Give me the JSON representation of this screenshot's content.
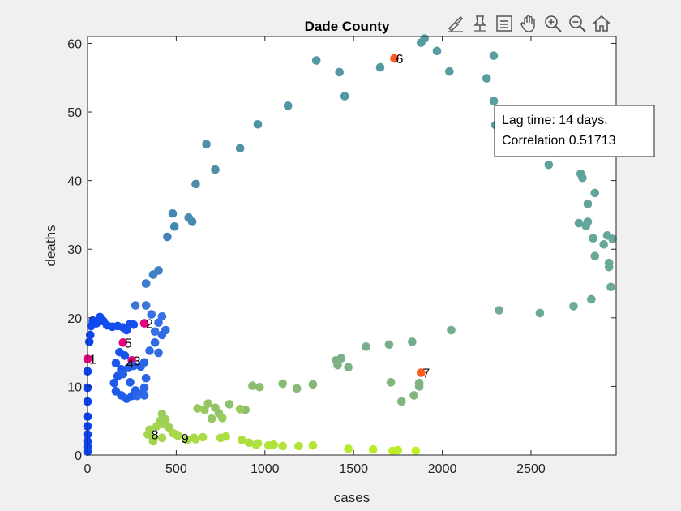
{
  "toolbar": {
    "icons": [
      "brush-icon",
      "data-tips-icon",
      "legend-icon",
      "pan-icon",
      "zoom-in-icon",
      "zoom-out-icon",
      "home-icon"
    ]
  },
  "colors": {
    "background": "#f0f0f0",
    "axes_background": "#ffffff",
    "highlight_colors": [
      "#e6007e",
      "#ff5a1f"
    ]
  },
  "chart_data": {
    "type": "scatter",
    "title": "Dade County",
    "xlabel": "cases",
    "ylabel": "deaths",
    "xlim": [
      0,
      2980
    ],
    "ylim": [
      0,
      61
    ],
    "xticks": [
      0,
      500,
      1000,
      1500,
      2000,
      2500
    ],
    "yticks": [
      0,
      10,
      20,
      30,
      40,
      50,
      60
    ],
    "grid": false,
    "annotation": {
      "lines": [
        "Lag time: 14 days.",
        "Correlation 0.51713"
      ],
      "placement": "top-right"
    },
    "points": [
      {
        "x": 0,
        "y": 0.5,
        "c": "#0a43f2"
      },
      {
        "x": 0,
        "y": 1.2,
        "c": "#0a43f2"
      },
      {
        "x": 0,
        "y": 2.0,
        "c": "#0a43f2"
      },
      {
        "x": 0,
        "y": 3.0,
        "c": "#0a43f2"
      },
      {
        "x": 0,
        "y": 4.2,
        "c": "#0a43f2"
      },
      {
        "x": 0,
        "y": 5.6,
        "c": "#0a43f2"
      },
      {
        "x": 0,
        "y": 7.8,
        "c": "#0a43f2"
      },
      {
        "x": 0,
        "y": 9.8,
        "c": "#0a43f2"
      },
      {
        "x": 0,
        "y": 12.2,
        "c": "#0a43f2"
      },
      {
        "x": 0,
        "y": 14.0,
        "c": "#e6007e"
      },
      {
        "x": 10,
        "y": 16.5,
        "c": "#0c46f1"
      },
      {
        "x": 15,
        "y": 17.5,
        "c": "#0c46f1"
      },
      {
        "x": 20,
        "y": 18.8,
        "c": "#0e48f0"
      },
      {
        "x": 30,
        "y": 19.6,
        "c": "#0e48f0"
      },
      {
        "x": 50,
        "y": 19.2,
        "c": "#0e48f0"
      },
      {
        "x": 70,
        "y": 20.1,
        "c": "#104af0"
      },
      {
        "x": 90,
        "y": 19.5,
        "c": "#104af0"
      },
      {
        "x": 110,
        "y": 18.9,
        "c": "#124cef"
      },
      {
        "x": 140,
        "y": 18.7,
        "c": "#124cef"
      },
      {
        "x": 170,
        "y": 18.8,
        "c": "#144eee"
      },
      {
        "x": 200,
        "y": 18.6,
        "c": "#144eee"
      },
      {
        "x": 220,
        "y": 18.2,
        "c": "#1650ee"
      },
      {
        "x": 240,
        "y": 19.1,
        "c": "#1650ee"
      },
      {
        "x": 260,
        "y": 19.0,
        "c": "#1852ed"
      },
      {
        "x": 320,
        "y": 19.2,
        "c": "#e6007e"
      },
      {
        "x": 200,
        "y": 16.4,
        "c": "#e6007e"
      },
      {
        "x": 250,
        "y": 13.8,
        "c": "#e6007e"
      },
      {
        "x": 210,
        "y": 14.5,
        "c": "#1a54ec"
      },
      {
        "x": 180,
        "y": 15.0,
        "c": "#1a54ec"
      },
      {
        "x": 160,
        "y": 13.4,
        "c": "#1c56ec"
      },
      {
        "x": 190,
        "y": 12.5,
        "c": "#1c56ec"
      },
      {
        "x": 170,
        "y": 11.5,
        "c": "#1e58eb"
      },
      {
        "x": 150,
        "y": 10.5,
        "c": "#1e58eb"
      },
      {
        "x": 160,
        "y": 9.3,
        "c": "#205aea"
      },
      {
        "x": 190,
        "y": 8.7,
        "c": "#205aea"
      },
      {
        "x": 220,
        "y": 8.2,
        "c": "#225cea"
      },
      {
        "x": 250,
        "y": 8.6,
        "c": "#225cea"
      },
      {
        "x": 270,
        "y": 9.4,
        "c": "#245ee9"
      },
      {
        "x": 240,
        "y": 10.6,
        "c": "#245ee9"
      },
      {
        "x": 200,
        "y": 11.8,
        "c": "#2660e8"
      },
      {
        "x": 230,
        "y": 12.7,
        "c": "#2660e8"
      },
      {
        "x": 260,
        "y": 13.0,
        "c": "#2862e8"
      },
      {
        "x": 300,
        "y": 12.9,
        "c": "#2862e8"
      },
      {
        "x": 320,
        "y": 13.5,
        "c": "#2a64e7"
      },
      {
        "x": 330,
        "y": 11.2,
        "c": "#2a64e7"
      },
      {
        "x": 320,
        "y": 9.8,
        "c": "#2c66e6"
      },
      {
        "x": 300,
        "y": 8.9,
        "c": "#2c66e6"
      },
      {
        "x": 280,
        "y": 8.6,
        "c": "#2e68e6"
      },
      {
        "x": 320,
        "y": 8.7,
        "c": "#2e68e6"
      },
      {
        "x": 350,
        "y": 15.2,
        "c": "#306ae5"
      },
      {
        "x": 380,
        "y": 16.4,
        "c": "#306ae5"
      },
      {
        "x": 400,
        "y": 14.9,
        "c": "#326ce4"
      },
      {
        "x": 420,
        "y": 17.5,
        "c": "#326ce4"
      },
      {
        "x": 440,
        "y": 18.2,
        "c": "#346ee4"
      },
      {
        "x": 400,
        "y": 19.3,
        "c": "#346ee4"
      },
      {
        "x": 360,
        "y": 20.5,
        "c": "#3670e3"
      },
      {
        "x": 420,
        "y": 20.2,
        "c": "#3670e3"
      },
      {
        "x": 380,
        "y": 18.0,
        "c": "#3872e2"
      },
      {
        "x": 330,
        "y": 21.8,
        "c": "#3a77d6"
      },
      {
        "x": 270,
        "y": 21.8,
        "c": "#3a77d6"
      },
      {
        "x": 330,
        "y": 25.0,
        "c": "#3d7ccc"
      },
      {
        "x": 370,
        "y": 26.3,
        "c": "#4080c4"
      },
      {
        "x": 400,
        "y": 26.9,
        "c": "#4080c4"
      },
      {
        "x": 450,
        "y": 31.8,
        "c": "#4384bc"
      },
      {
        "x": 480,
        "y": 35.2,
        "c": "#4587b5"
      },
      {
        "x": 490,
        "y": 33.3,
        "c": "#4587b5"
      },
      {
        "x": 570,
        "y": 34.6,
        "c": "#488ab0"
      },
      {
        "x": 590,
        "y": 34.0,
        "c": "#488ab0"
      },
      {
        "x": 610,
        "y": 39.5,
        "c": "#4b8dab"
      },
      {
        "x": 670,
        "y": 45.3,
        "c": "#4d90a8"
      },
      {
        "x": 720,
        "y": 41.6,
        "c": "#4d90a8"
      },
      {
        "x": 860,
        "y": 44.7,
        "c": "#4f92a6"
      },
      {
        "x": 960,
        "y": 48.2,
        "c": "#5094a4"
      },
      {
        "x": 1130,
        "y": 50.9,
        "c": "#5196a3"
      },
      {
        "x": 1290,
        "y": 57.5,
        "c": "#5297a3"
      },
      {
        "x": 1420,
        "y": 55.8,
        "c": "#5399a3"
      },
      {
        "x": 1450,
        "y": 52.3,
        "c": "#5399a3"
      },
      {
        "x": 1650,
        "y": 56.5,
        "c": "#549aa2"
      },
      {
        "x": 1730,
        "y": 57.8,
        "c": "#ff5a1f"
      },
      {
        "x": 1880,
        "y": 60.1,
        "c": "#569ca2"
      },
      {
        "x": 1900,
        "y": 60.7,
        "c": "#569ca2"
      },
      {
        "x": 1970,
        "y": 58.9,
        "c": "#579da1"
      },
      {
        "x": 2040,
        "y": 55.9,
        "c": "#579da1"
      },
      {
        "x": 2250,
        "y": 54.9,
        "c": "#589ea0"
      },
      {
        "x": 2290,
        "y": 58.2,
        "c": "#589ea0"
      },
      {
        "x": 2290,
        "y": 51.6,
        "c": "#599fa0"
      },
      {
        "x": 2300,
        "y": 48.1,
        "c": "#599fa0"
      },
      {
        "x": 2490,
        "y": 44.5,
        "c": "#5ba19f"
      },
      {
        "x": 2600,
        "y": 42.3,
        "c": "#5ba19f"
      },
      {
        "x": 2660,
        "y": 44.0,
        "c": "#5da29e"
      },
      {
        "x": 2680,
        "y": 44.4,
        "c": "#5da29e"
      },
      {
        "x": 2780,
        "y": 41.0,
        "c": "#5fa39d"
      },
      {
        "x": 2790,
        "y": 40.4,
        "c": "#5fa39d"
      },
      {
        "x": 2820,
        "y": 36.6,
        "c": "#61a49c"
      },
      {
        "x": 2860,
        "y": 38.2,
        "c": "#61a49c"
      },
      {
        "x": 2770,
        "y": 33.8,
        "c": "#63a59b"
      },
      {
        "x": 2820,
        "y": 34.0,
        "c": "#63a59b"
      },
      {
        "x": 2810,
        "y": 33.4,
        "c": "#65a69a"
      },
      {
        "x": 2850,
        "y": 31.6,
        "c": "#65a69a"
      },
      {
        "x": 2910,
        "y": 30.7,
        "c": "#67a799"
      },
      {
        "x": 2930,
        "y": 32.0,
        "c": "#67a799"
      },
      {
        "x": 2960,
        "y": 31.5,
        "c": "#69a898"
      },
      {
        "x": 2860,
        "y": 29.0,
        "c": "#69a898"
      },
      {
        "x": 2940,
        "y": 28.0,
        "c": "#6ba997"
      },
      {
        "x": 2940,
        "y": 27.4,
        "c": "#6ba997"
      },
      {
        "x": 2950,
        "y": 24.5,
        "c": "#6daa95"
      },
      {
        "x": 2840,
        "y": 22.7,
        "c": "#6daa95"
      },
      {
        "x": 2740,
        "y": 21.7,
        "c": "#6fab94"
      },
      {
        "x": 2550,
        "y": 20.7,
        "c": "#6fab94"
      },
      {
        "x": 2320,
        "y": 21.1,
        "c": "#71ac92"
      },
      {
        "x": 2050,
        "y": 18.2,
        "c": "#73ad90"
      },
      {
        "x": 1830,
        "y": 16.5,
        "c": "#75ae8e"
      },
      {
        "x": 1700,
        "y": 16.1,
        "c": "#77af8c"
      },
      {
        "x": 1570,
        "y": 15.8,
        "c": "#79b08a"
      },
      {
        "x": 1400,
        "y": 13.8,
        "c": "#7bb188"
      },
      {
        "x": 1430,
        "y": 14.1,
        "c": "#7bb188"
      },
      {
        "x": 1470,
        "y": 12.8,
        "c": "#7db286"
      },
      {
        "x": 1410,
        "y": 13.1,
        "c": "#7db286"
      },
      {
        "x": 1880,
        "y": 12.0,
        "c": "#ff5a1f"
      },
      {
        "x": 1870,
        "y": 10.5,
        "c": "#80b583"
      },
      {
        "x": 1870,
        "y": 10.0,
        "c": "#80b583"
      },
      {
        "x": 1840,
        "y": 8.7,
        "c": "#82b680"
      },
      {
        "x": 1770,
        "y": 7.8,
        "c": "#82b680"
      },
      {
        "x": 1710,
        "y": 10.6,
        "c": "#84b77e"
      },
      {
        "x": 1270,
        "y": 10.3,
        "c": "#86b87b"
      },
      {
        "x": 1180,
        "y": 9.7,
        "c": "#88ba78"
      },
      {
        "x": 1100,
        "y": 10.4,
        "c": "#8abb75"
      },
      {
        "x": 970,
        "y": 9.9,
        "c": "#8cbd72"
      },
      {
        "x": 930,
        "y": 10.1,
        "c": "#8cbd72"
      },
      {
        "x": 890,
        "y": 6.6,
        "c": "#8ebf6f"
      },
      {
        "x": 800,
        "y": 7.4,
        "c": "#90c16c"
      },
      {
        "x": 720,
        "y": 6.9,
        "c": "#92c369"
      },
      {
        "x": 740,
        "y": 6.1,
        "c": "#92c369"
      },
      {
        "x": 680,
        "y": 7.5,
        "c": "#94c566"
      },
      {
        "x": 700,
        "y": 5.3,
        "c": "#96c763"
      },
      {
        "x": 620,
        "y": 6.8,
        "c": "#98c960"
      },
      {
        "x": 660,
        "y": 6.6,
        "c": "#98c960"
      },
      {
        "x": 760,
        "y": 5.4,
        "c": "#9acb5d"
      },
      {
        "x": 860,
        "y": 6.7,
        "c": "#9acb5d"
      },
      {
        "x": 420,
        "y": 6.0,
        "c": "#9ccd5a"
      },
      {
        "x": 410,
        "y": 5.0,
        "c": "#9ecf57"
      },
      {
        "x": 440,
        "y": 5.2,
        "c": "#9ecf57"
      },
      {
        "x": 430,
        "y": 4.5,
        "c": "#a0d154"
      },
      {
        "x": 460,
        "y": 4.0,
        "c": "#a0d154"
      },
      {
        "x": 390,
        "y": 4.2,
        "c": "#a2d351"
      },
      {
        "x": 350,
        "y": 3.7,
        "c": "#a2d351"
      },
      {
        "x": 340,
        "y": 3.0,
        "c": "#a4d54e"
      },
      {
        "x": 370,
        "y": 2.0,
        "c": "#a4d54e"
      },
      {
        "x": 420,
        "y": 2.5,
        "c": "#a6d74b"
      },
      {
        "x": 480,
        "y": 3.2,
        "c": "#a6d74b"
      },
      {
        "x": 510,
        "y": 2.8,
        "c": "#a8d948"
      },
      {
        "x": 560,
        "y": 2.2,
        "c": "#a8d948"
      },
      {
        "x": 600,
        "y": 2.5,
        "c": "#aadb45"
      },
      {
        "x": 650,
        "y": 2.6,
        "c": "#aadb45"
      },
      {
        "x": 750,
        "y": 2.5,
        "c": "#acdd42"
      },
      {
        "x": 780,
        "y": 2.7,
        "c": "#acdd42"
      },
      {
        "x": 870,
        "y": 2.2,
        "c": "#aedf3f"
      },
      {
        "x": 910,
        "y": 1.8,
        "c": "#aedf3f"
      },
      {
        "x": 950,
        "y": 1.5,
        "c": "#b0e13c"
      },
      {
        "x": 960,
        "y": 1.7,
        "c": "#b0e13c"
      },
      {
        "x": 1020,
        "y": 1.4,
        "c": "#b2e339"
      },
      {
        "x": 1050,
        "y": 1.5,
        "c": "#b2e339"
      },
      {
        "x": 1100,
        "y": 1.3,
        "c": "#b4e536"
      },
      {
        "x": 1190,
        "y": 1.3,
        "c": "#b4e536"
      },
      {
        "x": 1270,
        "y": 1.4,
        "c": "#b6e733"
      },
      {
        "x": 1470,
        "y": 0.9,
        "c": "#b8e930"
      },
      {
        "x": 1610,
        "y": 0.8,
        "c": "#baeb2d"
      },
      {
        "x": 1720,
        "y": 0.6,
        "c": "#bced2a"
      },
      {
        "x": 1750,
        "y": 0.7,
        "c": "#bced2a"
      },
      {
        "x": 1850,
        "y": 0.6,
        "c": "#beef27"
      },
      {
        "x": 370,
        "y": 2.4,
        "c": "#a4d54e"
      },
      {
        "x": 500,
        "y": 3.0,
        "c": "#a8d948"
      },
      {
        "x": 610,
        "y": 2.3,
        "c": "#aadb45"
      }
    ],
    "labels": [
      {
        "x": 0,
        "y": 14.0,
        "text": "1"
      },
      {
        "x": 320,
        "y": 19.2,
        "text": "2"
      },
      {
        "x": 250,
        "y": 13.8,
        "text": "3"
      },
      {
        "x": 210,
        "y": 13.4,
        "text": "4"
      },
      {
        "x": 200,
        "y": 16.4,
        "text": "5"
      },
      {
        "x": 1730,
        "y": 57.8,
        "text": "6"
      },
      {
        "x": 1880,
        "y": 12.0,
        "text": "7"
      },
      {
        "x": 350,
        "y": 3.0,
        "text": "8"
      },
      {
        "x": 520,
        "y": 2.5,
        "text": "9"
      }
    ]
  }
}
